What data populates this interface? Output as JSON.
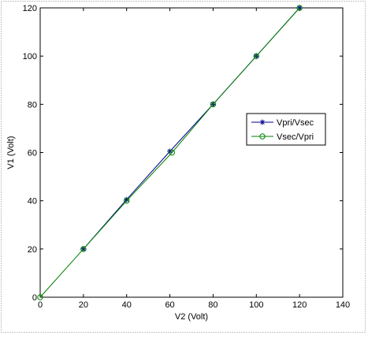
{
  "chart_data": {
    "type": "line",
    "title": "",
    "xlabel": "V2 (Volt)",
    "ylabel": "V1 (Volt)",
    "xlim": [
      0,
      140
    ],
    "ylim": [
      0,
      120
    ],
    "xticks": [
      0,
      20,
      40,
      60,
      80,
      100,
      120,
      140
    ],
    "yticks": [
      0,
      20,
      40,
      60,
      80,
      100,
      120
    ],
    "grid": false,
    "legend_position": "right",
    "series": [
      {
        "name": "Vpri/Vsec",
        "color": "#00008b",
        "marker": "asterisk",
        "x": [
          20,
          40,
          60,
          80,
          100,
          120
        ],
        "y": [
          20,
          40.5,
          60.5,
          80,
          100,
          120
        ]
      },
      {
        "name": "Vsec/Vpri",
        "color": "#008000",
        "marker": "circle",
        "x": [
          0,
          20,
          40,
          61,
          80,
          100,
          120
        ],
        "y": [
          0,
          20,
          40,
          60,
          80,
          100,
          120
        ]
      }
    ]
  }
}
